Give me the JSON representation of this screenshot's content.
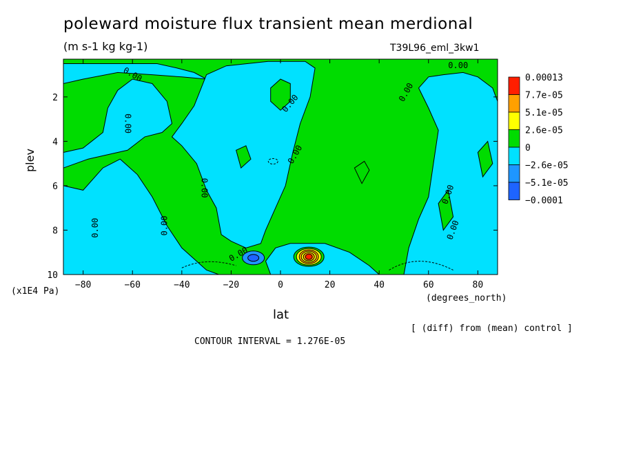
{
  "title": "poleward moisture flux transient mean merdional",
  "units": "(m s-1 kg kg-1)",
  "run_id": "T39L96_eml_3kw1",
  "note": "[ (diff) from (mean) control ]",
  "contour_interval": "CONTOUR INTERVAL = 1.276E-05",
  "colors": {
    "neg3": "#1e64ff",
    "neg2": "#1e96ff",
    "neg1": "#00e1ff",
    "pos0": "#00dc00",
    "pos1": "#ffff00",
    "pos2": "#ffa000",
    "pos3": "#ff1e00"
  },
  "chart_data": {
    "type": "heatmap",
    "title": "poleward moisture flux transient mean merdional",
    "subtitle": "(m s-1 kg kg-1)",
    "xlabel": "lat",
    "xunits": "(degrees_north)",
    "ylabel": "plev",
    "yunits": "(x1E4 Pa)",
    "xlim": [
      -88,
      88
    ],
    "ylim": [
      10,
      0.3
    ],
    "x_ticks": [
      -80,
      -60,
      -40,
      -20,
      0,
      20,
      40,
      60,
      80
    ],
    "x_tick_labels": [
      "−80",
      "−60",
      "−40",
      "−20",
      "0",
      "20",
      "40",
      "60",
      "80"
    ],
    "y_ticks": [
      2,
      4,
      6,
      8,
      10
    ],
    "y_tick_labels": [
      "2",
      "4",
      "6",
      "8",
      "10"
    ],
    "legend": {
      "position": "right",
      "levels": [
        "0.00013",
        "7.7e-05",
        "5.1e-05",
        "2.6e-05",
        "0",
        "−2.6e-05",
        "−5.1e-05",
        "−0.0001"
      ],
      "colors": [
        "#ff1e00",
        "#ffa000",
        "#ffff00",
        "#00dc00",
        "#00e1ff",
        "#1e96ff",
        "#1e64ff"
      ]
    },
    "contour_labels": [
      {
        "text": "0.00",
        "x": -60,
        "y": 1.0,
        "angle": 30
      },
      {
        "text": "0.00",
        "x": -62,
        "y": 3.2,
        "angle": 90
      },
      {
        "text": "0.00",
        "x": -75,
        "y": 7.9,
        "angle": -90
      },
      {
        "text": "0.00",
        "x": -47,
        "y": 7.8,
        "angle": -90
      },
      {
        "text": "0.00",
        "x": -31,
        "y": 6.1,
        "angle": 90
      },
      {
        "text": "0.00",
        "x": -17,
        "y": 9.1,
        "angle": -30
      },
      {
        "text": "0.00",
        "x": 4,
        "y": 2.3,
        "angle": -50
      },
      {
        "text": "0.00",
        "x": 6,
        "y": 4.6,
        "angle": -60
      },
      {
        "text": "0.00",
        "x": 51,
        "y": 1.8,
        "angle": -60
      },
      {
        "text": "0.00",
        "x": 72,
        "y": 0.6,
        "angle": 0
      },
      {
        "text": "0.00",
        "x": 68,
        "y": 6.4,
        "angle": -70
      },
      {
        "text": "0.00",
        "x": 70,
        "y": 8.0,
        "angle": -70
      }
    ],
    "regions": [
      {
        "sign": "positive",
        "level": 0,
        "lat": [
          -88,
          88
        ],
        "plev": [
          0.3,
          10
        ],
        "note": "background green (0 to 2.6e-05)"
      },
      {
        "sign": "negative",
        "level": -1,
        "lat": [
          -70,
          -45
        ],
        "plev": [
          1.0,
          3.8
        ]
      },
      {
        "sign": "negative",
        "level": -1,
        "lat": [
          -20,
          12
        ],
        "plev": [
          0.5,
          9.5
        ]
      },
      {
        "sign": "negative",
        "level": -1,
        "lat": [
          55,
          80
        ],
        "plev": [
          1.0,
          9.5
        ]
      },
      {
        "sign": "negative",
        "level": -3,
        "lat": [
          -12,
          -8
        ],
        "plev": [
          9.1,
          9.4
        ],
        "note": "minimum around -0.0001"
      },
      {
        "sign": "positive",
        "level": 3,
        "lat": [
          10,
          13
        ],
        "plev": [
          9.0,
          9.4
        ],
        "note": "maximum around 0.00013"
      }
    ]
  }
}
